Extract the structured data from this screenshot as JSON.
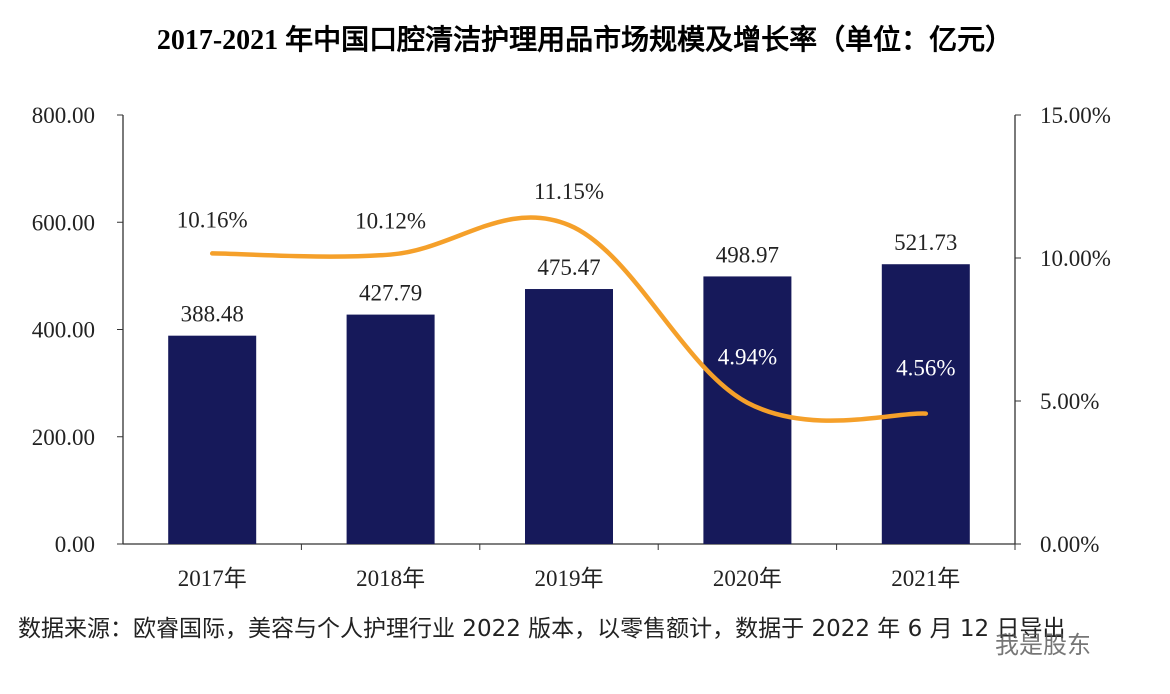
{
  "chart_data": {
    "type": "bar+line",
    "title": "2017-2021 年中国口腔清洁护理用品市场规模及增长率（单位：亿元）",
    "categories": [
      "2017年",
      "2018年",
      "2019年",
      "2020年",
      "2021年"
    ],
    "series": [
      {
        "type": "bar",
        "values": [
          388.48,
          427.79,
          475.47,
          498.97,
          521.73
        ],
        "labels": [
          "388.48",
          "427.79",
          "475.47",
          "498.97",
          "521.73"
        ],
        "color": "#16195a",
        "axis": "left"
      },
      {
        "type": "line",
        "values": [
          10.16,
          10.12,
          11.15,
          4.94,
          4.56
        ],
        "labels": [
          "10.16%",
          "10.12%",
          "11.15%",
          "4.94%",
          "4.56%"
        ],
        "color": "#f5a02a",
        "axis": "right",
        "smooth": true
      }
    ],
    "ylim": [
      0,
      800
    ],
    "yticks": [
      "0.00",
      "200.00",
      "400.00",
      "600.00",
      "800.00"
    ],
    "y2lim": [
      0,
      15
    ],
    "y2ticks": [
      "0.00%",
      "5.00%",
      "10.00%",
      "15.00%"
    ],
    "grid": false
  },
  "note": "数据来源：欧睿国际，美容与个人护理行业 2022 版本，以零售额计，数据于 2022 年 6 月 12 日导出",
  "watermark": "我是股东"
}
